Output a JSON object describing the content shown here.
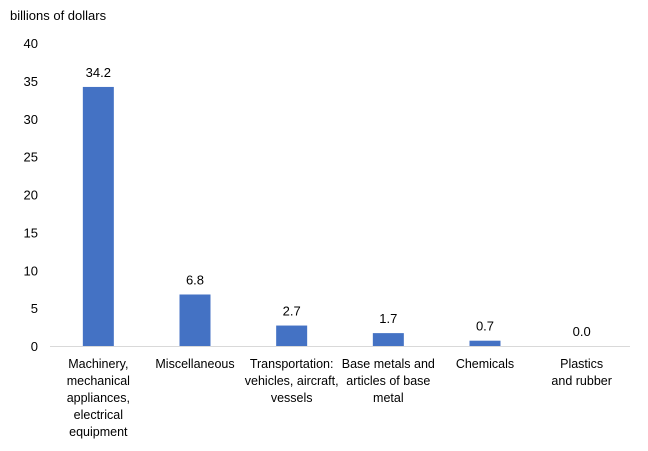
{
  "chart_data": {
    "type": "bar",
    "ylabel": "billions of dollars",
    "ylim": [
      0,
      40
    ],
    "yticks": [
      0,
      5,
      10,
      15,
      20,
      25,
      30,
      35,
      40
    ],
    "grid": false,
    "legend": "none",
    "bar_color": "#4472C4",
    "categories": [
      "Machinery, mechanical appliances, electrical equipment",
      "Miscellaneous",
      "Transportation: vehicles, aircraft, vessels",
      "Base metals and articles of base metal",
      "Chemicals",
      "Plastics and rubber"
    ],
    "category_lines": [
      [
        "Machinery,",
        "mechanical",
        "appliances,",
        "electrical",
        "equipment"
      ],
      [
        "Miscellaneous"
      ],
      [
        "Transportation:",
        "vehicles, aircraft,",
        "vessels"
      ],
      [
        "Base metals and",
        "articles of base",
        "metal"
      ],
      [
        "Chemicals"
      ],
      [
        "Plastics",
        "and rubber"
      ]
    ],
    "values": [
      34.2,
      6.8,
      2.7,
      1.7,
      0.7,
      0.0
    ],
    "value_labels": [
      "34.2",
      "6.8",
      "2.7",
      "1.7",
      "0.7",
      "0.0"
    ]
  }
}
